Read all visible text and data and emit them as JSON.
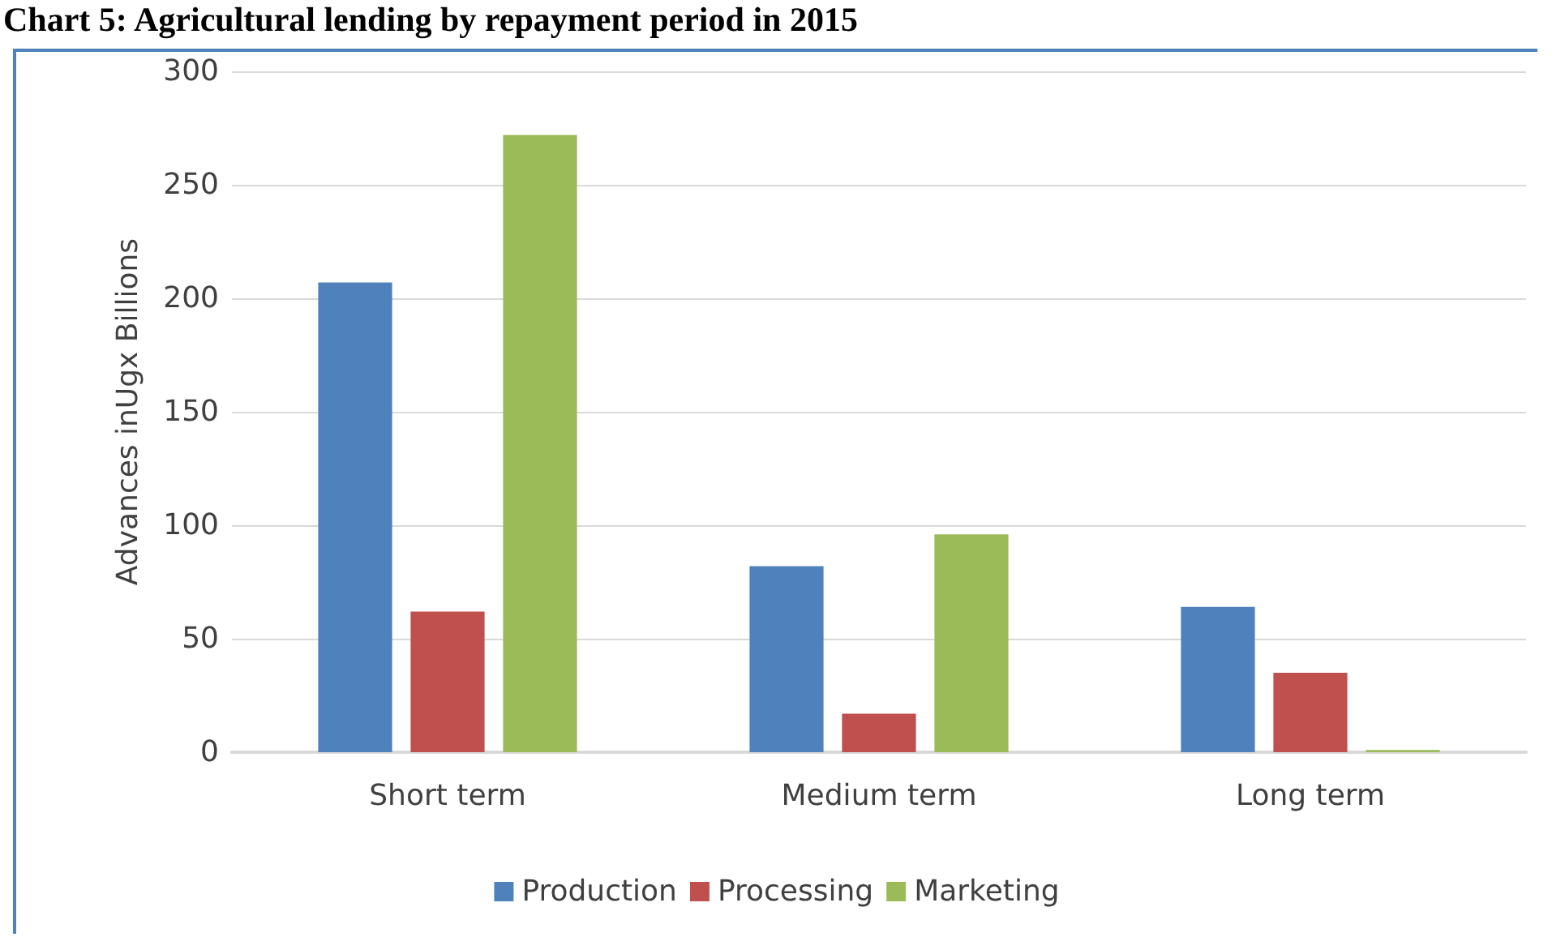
{
  "chart_data": {
    "type": "bar",
    "title": "Chart 5: Agricultural lending by repayment period in 2015",
    "ylabel": "Advances inUgx Billions",
    "categories": [
      "Short term",
      "Medium term",
      "Long term"
    ],
    "series": [
      {
        "name": "Production",
        "color": "#4f81bd",
        "values": [
          207,
          82,
          64
        ]
      },
      {
        "name": "Processing",
        "color": "#c0504d",
        "values": [
          62,
          17,
          35
        ]
      },
      {
        "name": "Marketing",
        "color": "#9bbb59",
        "values": [
          272,
          96,
          1
        ]
      }
    ],
    "ylim": [
      0,
      300
    ],
    "yticks": [
      0,
      50,
      100,
      150,
      200,
      250,
      300
    ],
    "grid": "y",
    "legend": "bottom"
  }
}
